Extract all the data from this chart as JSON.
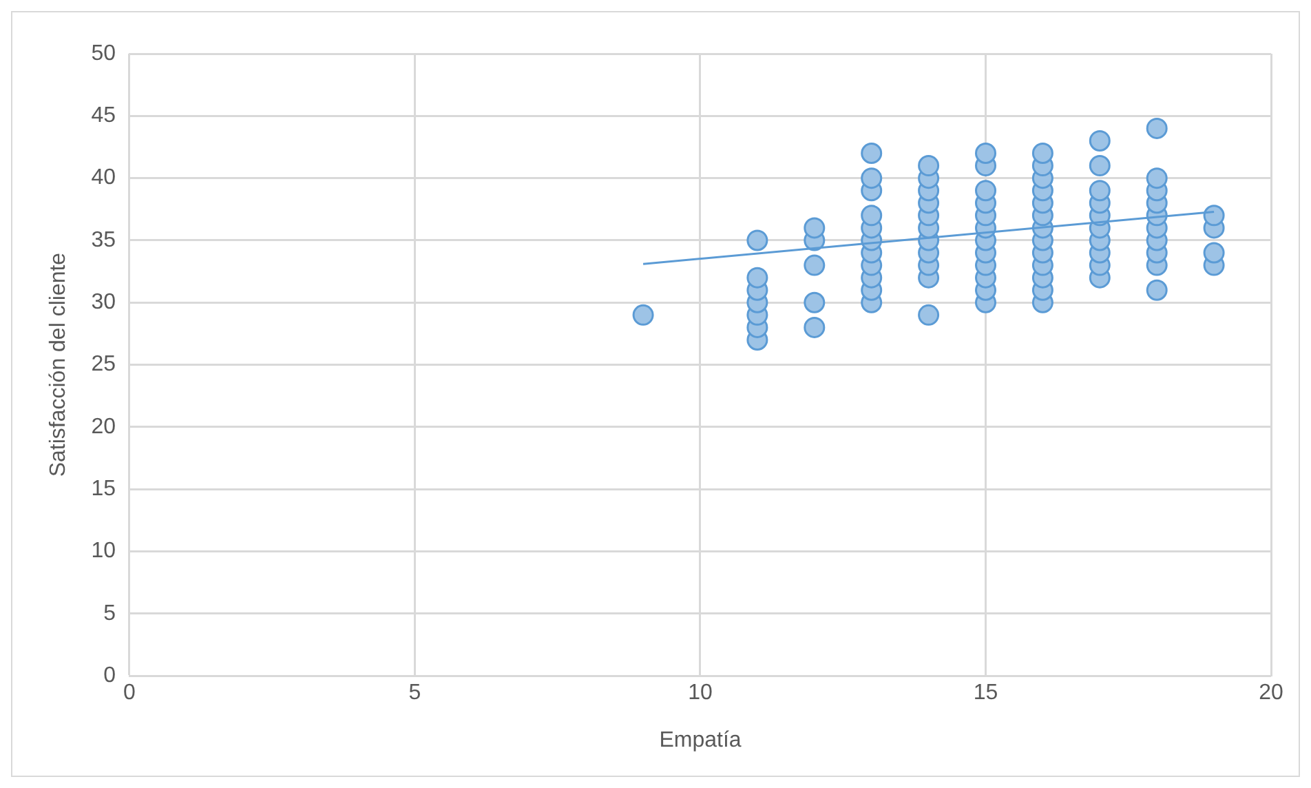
{
  "chart_data": {
    "type": "scatter",
    "xlabel": "Empatía",
    "ylabel": "Satisfacción del cliente",
    "xlim": [
      0,
      20
    ],
    "xticks": [
      0,
      5,
      10,
      15,
      20
    ],
    "ylim": [
      0,
      50
    ],
    "yticks": [
      0,
      5,
      10,
      15,
      20,
      25,
      30,
      35,
      40,
      45,
      50
    ],
    "grid": true,
    "legend": false,
    "marker": "circle",
    "series": [
      {
        "color": "#9dc3e6",
        "x": [
          9,
          11,
          11,
          11,
          11,
          11,
          11,
          11,
          12,
          12,
          12,
          12,
          12,
          13,
          13,
          13,
          13,
          13,
          13,
          13,
          13,
          13,
          13,
          13,
          14,
          14,
          14,
          14,
          14,
          14,
          14,
          14,
          14,
          14,
          14,
          15,
          15,
          15,
          15,
          15,
          15,
          15,
          15,
          15,
          15,
          15,
          15,
          16,
          16,
          16,
          16,
          16,
          16,
          16,
          16,
          16,
          16,
          16,
          16,
          16,
          17,
          17,
          17,
          17,
          17,
          17,
          17,
          17,
          17,
          17,
          18,
          18,
          18,
          18,
          18,
          18,
          18,
          18,
          18,
          18,
          19,
          19,
          19,
          19
        ],
        "values": [
          29,
          27,
          28,
          29,
          30,
          31,
          32,
          35,
          28,
          30,
          33,
          35,
          36,
          30,
          31,
          32,
          33,
          34,
          35,
          36,
          37,
          39,
          40,
          42,
          29,
          32,
          33,
          34,
          35,
          36,
          37,
          38,
          39,
          40,
          41,
          30,
          31,
          32,
          33,
          34,
          35,
          36,
          37,
          38,
          39,
          41,
          42,
          30,
          31,
          32,
          33,
          34,
          35,
          36,
          37,
          38,
          39,
          40,
          41,
          42,
          32,
          33,
          34,
          35,
          36,
          37,
          38,
          39,
          41,
          43,
          31,
          33,
          34,
          35,
          36,
          37,
          38,
          39,
          40,
          44,
          33,
          34,
          36,
          37
        ]
      },
      {
        "type": "line",
        "color": "#5b9bd5",
        "x": [
          9,
          19
        ],
        "values": [
          33.1,
          37.3
        ],
        "marker": "none"
      }
    ]
  }
}
